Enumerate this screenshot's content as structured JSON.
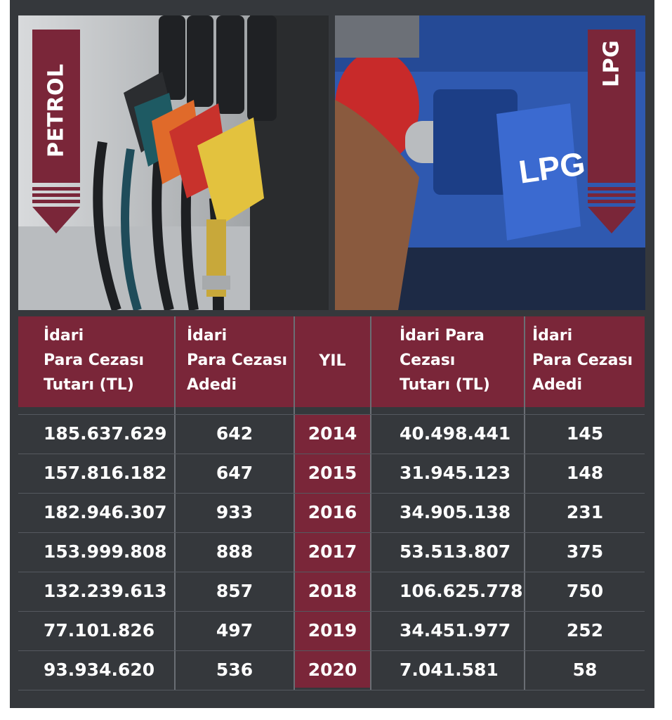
{
  "colors": {
    "background": "#35383c",
    "accent": "#7a2639",
    "text": "#ffffff"
  },
  "banners": {
    "left": "PETROL",
    "right": "LPG"
  },
  "photo_right_label": "LPG",
  "chart_data": {
    "type": "table",
    "columns": [
      "İdari\nPara Cezası\nTutarı (TL)",
      "İdari\nPara Cezası\nAdedi",
      "YIL",
      "İdari Para\nCezası\nTutarı (TL)",
      "İdari\nPara Cezası\nAdedi"
    ],
    "rows": [
      [
        "185.637.629",
        "642",
        "2014",
        "40.498.441",
        "145"
      ],
      [
        "157.816.182",
        "647",
        "2015",
        "31.945.123",
        "148"
      ],
      [
        "182.946.307",
        "933",
        "2016",
        "34.905.138",
        "231"
      ],
      [
        "153.999.808",
        "888",
        "2017",
        "53.513.807",
        "375"
      ],
      [
        "132.239.613",
        "857",
        "2018",
        "106.625.778",
        "750"
      ],
      [
        "77.101.826",
        "497",
        "2019",
        "34.451.977",
        "252"
      ],
      [
        "93.934.620",
        "536",
        "2020",
        "7.041.581",
        "58"
      ]
    ]
  }
}
